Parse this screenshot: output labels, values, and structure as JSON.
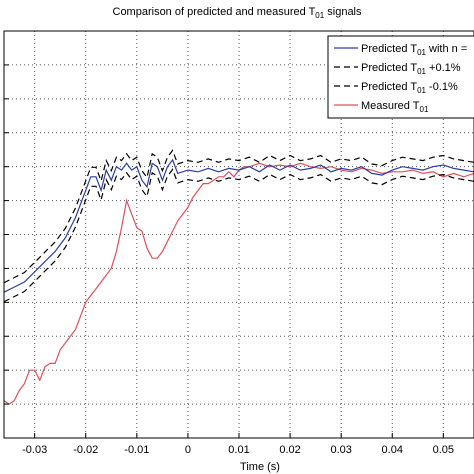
{
  "chart_data": {
    "type": "line",
    "title": "Comparison of predicted and measured T01 signals",
    "title_main": "Comparison of predicted and measured T",
    "title_sub": "01",
    "title_tail": " signals",
    "xlabel": "Time (s)",
    "ylabel": "",
    "xlim": [
      -0.036,
      0.056
    ],
    "ylim": [
      0,
      12
    ],
    "grid": true,
    "grid_style": "dotted",
    "legend_position": "top-right",
    "x_ticks": [
      -0.03,
      -0.02,
      -0.01,
      0,
      0.01,
      0.02,
      0.03,
      0.04,
      0.05
    ],
    "x_tick_labels": [
      "-0.03",
      "-0.02",
      "-0.01",
      "0",
      "0.01",
      "0.02",
      "0.03",
      "0.04",
      "0.05"
    ],
    "y_ticks": [
      1,
      2,
      3,
      4,
      5,
      6,
      7,
      8,
      9,
      10,
      11
    ],
    "series": [
      {
        "name": "Predicted T01 with n =",
        "legend_main": "Predicted T",
        "legend_sub": "01",
        "legend_tail": " with n =",
        "color": "#2b3fa6",
        "dash": "solid",
        "x": [
          -0.036,
          -0.034,
          -0.032,
          -0.03,
          -0.028,
          -0.026,
          -0.024,
          -0.022,
          -0.02,
          -0.019,
          -0.018,
          -0.017,
          -0.016,
          -0.015,
          -0.014,
          -0.013,
          -0.012,
          -0.011,
          -0.01,
          -0.009,
          -0.008,
          -0.007,
          -0.006,
          -0.005,
          -0.004,
          -0.003,
          -0.002,
          0.0,
          0.002,
          0.004,
          0.006,
          0.008,
          0.01,
          0.012,
          0.014,
          0.016,
          0.018,
          0.02,
          0.022,
          0.024,
          0.026,
          0.028,
          0.03,
          0.032,
          0.034,
          0.036,
          0.038,
          0.04,
          0.042,
          0.044,
          0.046,
          0.048,
          0.05,
          0.052,
          0.054,
          0.056
        ],
        "y": [
          4.3,
          4.45,
          4.6,
          4.9,
          5.2,
          5.5,
          5.9,
          6.5,
          7.3,
          7.7,
          7.7,
          7.3,
          7.9,
          7.6,
          8.0,
          7.9,
          8.1,
          7.9,
          8.0,
          7.6,
          7.4,
          8.1,
          8.0,
          7.6,
          8.0,
          8.2,
          7.8,
          7.9,
          7.85,
          7.95,
          7.85,
          7.95,
          7.9,
          8.0,
          7.85,
          8.05,
          7.9,
          8.05,
          7.9,
          7.95,
          8.05,
          7.85,
          7.95,
          7.9,
          8.0,
          7.8,
          7.75,
          7.9,
          8.0,
          7.95,
          7.9,
          8.0,
          8.05,
          7.95,
          7.9,
          7.85
        ]
      },
      {
        "name": "Predicted T01 +0.1%",
        "legend_main": "Predicted T",
        "legend_sub": "01",
        "legend_tail": " +0.1%",
        "color": "#000000",
        "dash": "dashed",
        "offset": 0.28
      },
      {
        "name": "Predicted T01 -0.1%",
        "legend_main": "Predicted T",
        "legend_sub": "01",
        "legend_tail": " -0.1%",
        "color": "#000000",
        "dash": "dashed",
        "offset": -0.28
      },
      {
        "name": "Measured T01",
        "legend_main": "Measured T",
        "legend_sub": "01",
        "legend_tail": "",
        "color": "#e0505a",
        "dash": "solid",
        "x": [
          -0.036,
          -0.035,
          -0.034,
          -0.033,
          -0.032,
          -0.031,
          -0.03,
          -0.029,
          -0.028,
          -0.027,
          -0.026,
          -0.025,
          -0.024,
          -0.023,
          -0.022,
          -0.021,
          -0.02,
          -0.019,
          -0.018,
          -0.017,
          -0.016,
          -0.015,
          -0.014,
          -0.013,
          -0.012,
          -0.011,
          -0.01,
          -0.009,
          -0.008,
          -0.007,
          -0.006,
          -0.005,
          -0.004,
          -0.003,
          -0.002,
          -0.001,
          0.0,
          0.001,
          0.002,
          0.003,
          0.004,
          0.005,
          0.006,
          0.007,
          0.008,
          0.009,
          0.01,
          0.011,
          0.012,
          0.014,
          0.016,
          0.018,
          0.02,
          0.022,
          0.024,
          0.026,
          0.028,
          0.03,
          0.032,
          0.034,
          0.036,
          0.038,
          0.04,
          0.042,
          0.044,
          0.046,
          0.048,
          0.05,
          0.052,
          0.054,
          0.056
        ],
        "y": [
          1.1,
          1.0,
          1.1,
          1.4,
          1.6,
          2.0,
          2.0,
          1.7,
          2.1,
          2.2,
          2.2,
          2.6,
          2.8,
          3.0,
          3.2,
          3.6,
          4.0,
          4.2,
          4.4,
          4.6,
          4.8,
          5.0,
          5.5,
          6.2,
          7.0,
          6.6,
          6.2,
          6.1,
          5.6,
          5.3,
          5.3,
          5.5,
          5.8,
          6.1,
          6.4,
          6.6,
          6.8,
          7.1,
          7.3,
          7.5,
          7.5,
          7.6,
          7.7,
          7.7,
          7.85,
          7.7,
          7.9,
          8.0,
          8.0,
          8.1,
          8.0,
          8.05,
          8.0,
          8.1,
          8.0,
          7.95,
          8.0,
          7.9,
          7.85,
          7.95,
          7.9,
          7.8,
          7.85,
          7.85,
          7.9,
          7.8,
          7.85,
          7.7,
          7.8,
          7.7,
          7.8
        ]
      }
    ]
  }
}
